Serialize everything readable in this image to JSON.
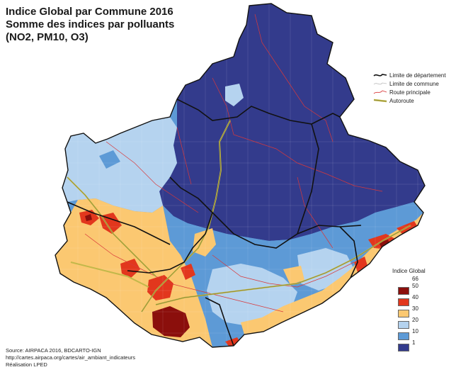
{
  "map": {
    "title_lines": [
      "Indice Global par Commune 2016",
      "Somme des indices par polluants",
      "(NO2, PM10, O3)"
    ]
  },
  "legend_lines": [
    {
      "label": "Limite de département",
      "symbol": "department-boundary"
    },
    {
      "label": "Limite de commune",
      "symbol": "commune-boundary"
    },
    {
      "label": "Route principale",
      "symbol": "main-road"
    },
    {
      "label": "Autoroute",
      "symbol": "motorway"
    }
  ],
  "legend_index": {
    "title": "Indice Global",
    "top_value": "66",
    "classes": [
      {
        "upper": "66",
        "lower": "50",
        "color": "#8b0f0c"
      },
      {
        "upper": "50",
        "lower": "40",
        "color": "#e2371d"
      },
      {
        "upper": "40",
        "lower": "30",
        "color": "#fbc871"
      },
      {
        "upper": "30",
        "lower": "20",
        "color": "#b5d3ef"
      },
      {
        "upper": "20",
        "lower": "10",
        "color": "#5d9ad6"
      },
      {
        "upper": "10",
        "lower": "1",
        "color": "#333b8c"
      }
    ]
  },
  "source_lines": [
    "Source: AIRPACA 2016, BDCARTO-IGN",
    "http://cartes.airpaca.org/cartes/air_ambiant_indicateurs",
    "Réalisation LPED"
  ],
  "colors": {
    "very_high": "#8b0f0c",
    "high": "#e2371d",
    "medium": "#fbc871",
    "low": "#b5d3ef",
    "lower": "#5d9ad6",
    "lowest": "#333b8c",
    "road": "#d9383a",
    "motorway": "#c2b84a",
    "department_border": "#111111"
  }
}
